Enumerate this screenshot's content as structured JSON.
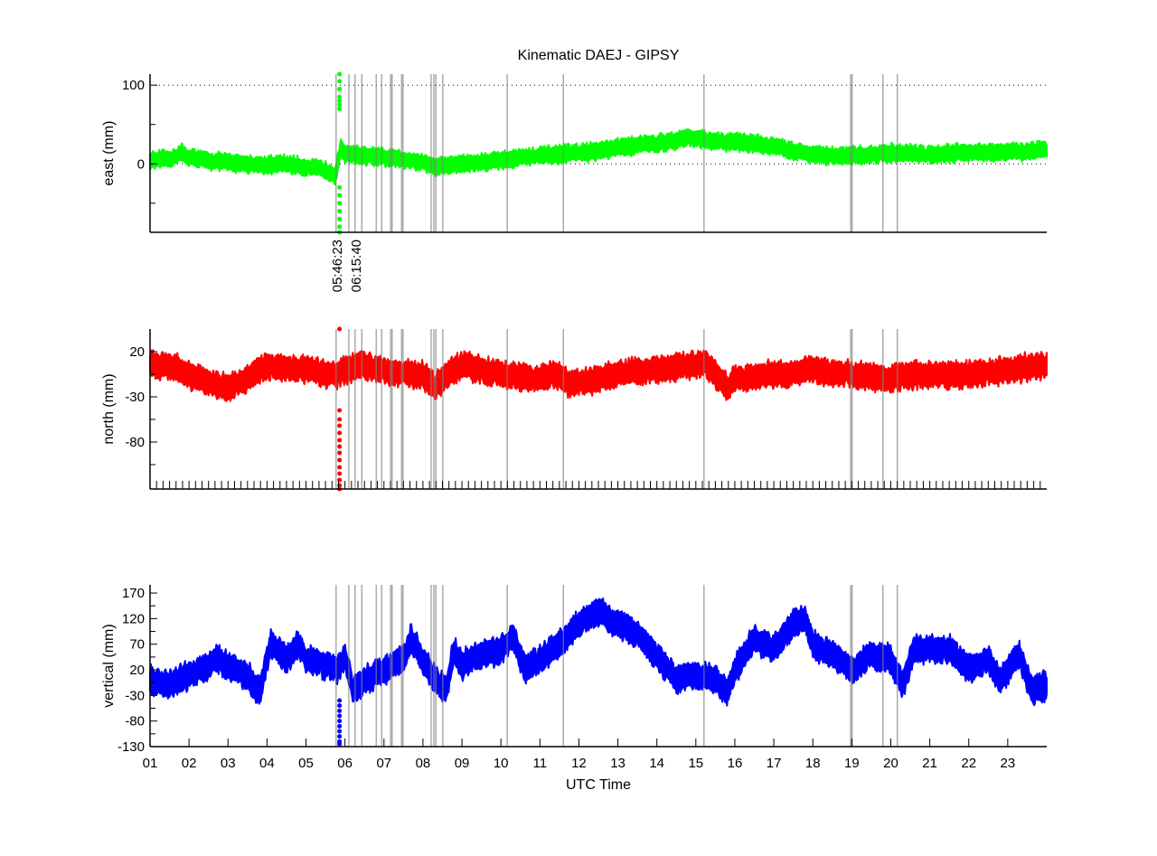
{
  "chart_data": {
    "type": "scatter",
    "title": "Kinematic DAEJ - GIPSY",
    "xlabel": "UTC Time",
    "xlim": [
      1,
      24
    ],
    "x_tick_labels": [
      "01",
      "02",
      "03",
      "04",
      "05",
      "06",
      "07",
      "08",
      "09",
      "10",
      "11",
      "12",
      "13",
      "14",
      "15",
      "16",
      "17",
      "18",
      "19",
      "20",
      "21",
      "22",
      "23"
    ],
    "event_lines_hours": [
      5.773,
      6.1,
      6.261,
      6.43,
      6.8,
      6.94,
      7.17,
      7.21,
      7.45,
      7.49,
      8.21,
      8.28,
      8.33,
      8.51,
      10.16,
      11.6,
      15.21,
      18.97,
      19.01,
      19.8,
      20.17
    ],
    "event_labels": [
      {
        "hour": 5.773,
        "text": "05:46:23"
      },
      {
        "hour": 6.261,
        "text": "06:15:40"
      }
    ],
    "colors": {
      "east": "#00ff00",
      "north": "#ff0000",
      "vertical": "#0000ff",
      "event_line": "#808080"
    },
    "panels": [
      {
        "name": "east",
        "ylabel": "east (mm)",
        "ylim": [
          -87,
          114
        ],
        "yticks": [
          100,
          0
        ],
        "minor_yticks": [
          50,
          -50
        ],
        "grid_y": [
          100,
          0
        ],
        "band_halfwidth": 9,
        "x": [
          1,
          1.5,
          1.8,
          2,
          2.5,
          3,
          3.5,
          4,
          4.5,
          5,
          5.5,
          5.75,
          5.9,
          6,
          6.5,
          7,
          7.5,
          8,
          8.3,
          8.6,
          9,
          9.5,
          10,
          10.5,
          11,
          11.5,
          12,
          12.5,
          13,
          13.5,
          14,
          14.5,
          14.8,
          15,
          15.5,
          16,
          16.5,
          17,
          17.5,
          18,
          18.5,
          19,
          19.5,
          20,
          20.5,
          21,
          21.5,
          22,
          22.5,
          23,
          23.5,
          24
        ],
        "y": [
          4,
          6,
          14,
          8,
          4,
          2,
          0,
          -2,
          0,
          -4,
          -8,
          -14,
          20,
          14,
          10,
          8,
          6,
          2,
          -4,
          -2,
          0,
          2,
          5,
          8,
          10,
          12,
          14,
          16,
          20,
          24,
          26,
          30,
          34,
          32,
          28,
          28,
          26,
          22,
          16,
          12,
          10,
          10,
          12,
          14,
          13,
          12,
          14,
          15,
          14,
          15,
          16,
          18
        ],
        "outliers": {
          "x": 5.86,
          "y": [
            114,
            105,
            95,
            85,
            80,
            75,
            70,
            -30,
            -40,
            -50,
            -60,
            -70,
            -80,
            -87
          ]
        }
      },
      {
        "name": "north",
        "ylabel": "north (mm)",
        "ylim": [
          -132,
          45
        ],
        "yticks": [
          20,
          -30,
          -80
        ],
        "minor_yticks": [
          -5,
          -55,
          -105
        ],
        "grid_y": [],
        "band_halfwidth": 12,
        "x": [
          1,
          1.5,
          2,
          2.5,
          3,
          3.5,
          4,
          4.5,
          5,
          5.5,
          5.8,
          6,
          6.5,
          7,
          7.5,
          8,
          8.3,
          8.5,
          9,
          9.5,
          10,
          10.5,
          11,
          11.5,
          11.7,
          12,
          12.5,
          13,
          13.5,
          14,
          14.5,
          15,
          15.2,
          15.5,
          15.8,
          16,
          16.5,
          17,
          17.5,
          18,
          18.5,
          19,
          19.5,
          20,
          20.5,
          21,
          21.5,
          22,
          22.5,
          23,
          23.5,
          24
        ],
        "y": [
          5,
          5,
          -5,
          -15,
          -20,
          -10,
          5,
          2,
          0,
          -5,
          -5,
          0,
          5,
          0,
          -5,
          -5,
          -20,
          -10,
          5,
          0,
          -5,
          -8,
          -10,
          -5,
          -15,
          -15,
          -10,
          -5,
          -2,
          0,
          3,
          5,
          10,
          -5,
          -20,
          -10,
          -8,
          -5,
          -3,
          0,
          -3,
          -5,
          -8,
          -10,
          -6,
          -5,
          -6,
          -5,
          -3,
          0,
          2,
          5
        ],
        "outliers": {
          "x": 5.86,
          "y": [
            45,
            -45,
            -55,
            -62,
            -70,
            -78,
            -85,
            -92,
            -100,
            -108,
            -115,
            -122,
            -128,
            -132
          ]
        }
      },
      {
        "name": "vertical",
        "ylabel": "vertical (mm)",
        "ylim": [
          -130,
          186
        ],
        "yticks": [
          170,
          120,
          70,
          20,
          -30,
          -80,
          -130
        ],
        "minor_yticks": [
          145,
          95,
          45,
          -5,
          -55,
          -105
        ],
        "grid_y": [],
        "band_halfwidth": 22,
        "x": [
          1,
          1.5,
          2,
          2.5,
          2.7,
          3,
          3.5,
          3.8,
          4.1,
          4.5,
          4.8,
          5,
          5.5,
          5.8,
          6,
          6.2,
          6.5,
          7,
          7.5,
          7.7,
          8,
          8.3,
          8.6,
          8.8,
          9,
          9.5,
          10,
          10.3,
          10.6,
          11,
          11.5,
          12,
          12.5,
          13,
          13.5,
          14,
          14.5,
          15,
          15.5,
          15.8,
          16,
          16.5,
          17,
          17.5,
          17.8,
          18,
          18.5,
          19,
          19.5,
          20,
          20.3,
          20.6,
          21,
          21.5,
          22,
          22.5,
          22.8,
          23.3,
          23.6,
          24
        ],
        "y": [
          0,
          -10,
          10,
          30,
          45,
          25,
          10,
          -25,
          70,
          40,
          70,
          40,
          30,
          20,
          50,
          -20,
          0,
          20,
          40,
          80,
          40,
          0,
          -20,
          60,
          30,
          50,
          60,
          85,
          20,
          40,
          70,
          110,
          135,
          110,
          90,
          50,
          0,
          10,
          0,
          -20,
          20,
          80,
          60,
          110,
          120,
          70,
          50,
          20,
          50,
          40,
          -10,
          60,
          60,
          60,
          20,
          40,
          0,
          50,
          -20,
          -10
        ],
        "outliers": {
          "x": 5.86,
          "y": [
            -40,
            -50,
            -60,
            -70,
            -80,
            -90,
            -100,
            -110,
            -120,
            -125
          ]
        }
      }
    ]
  }
}
